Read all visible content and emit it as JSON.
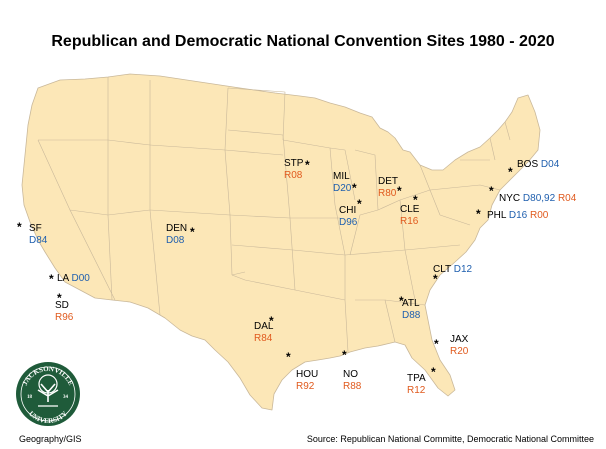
{
  "title": "Republican and Democratic National Convention Sites 1980 - 2020",
  "colors": {
    "land": "#fce7b7",
    "border": "#c9b89a",
    "republican": "#e05a1e",
    "democratic": "#1f5fae",
    "logo_green": "#1f5b3a"
  },
  "cities": [
    {
      "abbr": "SF",
      "rep": "",
      "dem": "D84"
    },
    {
      "abbr": "LA",
      "rep": "",
      "dem": "D00"
    },
    {
      "abbr": "SD",
      "rep": "R96",
      "dem": ""
    },
    {
      "abbr": "DEN",
      "rep": "",
      "dem": "D08"
    },
    {
      "abbr": "STP",
      "rep": "R08",
      "dem": ""
    },
    {
      "abbr": "MIL",
      "rep": "",
      "dem": "D20"
    },
    {
      "abbr": "CHI",
      "rep": "",
      "dem": "D96"
    },
    {
      "abbr": "DET",
      "rep": "R80",
      "dem": ""
    },
    {
      "abbr": "CLE",
      "rep": "R16",
      "dem": ""
    },
    {
      "abbr": "BOS",
      "rep": "",
      "dem": "D04"
    },
    {
      "abbr": "NYC",
      "rep": "R04",
      "dem": "D80,92"
    },
    {
      "abbr": "PHL",
      "rep": "R00",
      "dem": "D16"
    },
    {
      "abbr": "CLT",
      "rep": "",
      "dem": "D12"
    },
    {
      "abbr": "ATL",
      "rep": "",
      "dem": "D88"
    },
    {
      "abbr": "DAL",
      "rep": "R84",
      "dem": ""
    },
    {
      "abbr": "HOU",
      "rep": "R92",
      "dem": ""
    },
    {
      "abbr": "NO",
      "rep": "R88",
      "dem": ""
    },
    {
      "abbr": "JAX",
      "rep": "R20",
      "dem": ""
    },
    {
      "abbr": "TPA",
      "rep": "R12",
      "dem": ""
    }
  ],
  "logo": {
    "top_text": "JACKSONVILLE",
    "bottom_text": "UNIVERSITY",
    "year_left": "18",
    "year_right": "34"
  },
  "footer": {
    "left": "Geography/GIS",
    "right": "Source: Republican National Committe, Democratic National Committee"
  }
}
